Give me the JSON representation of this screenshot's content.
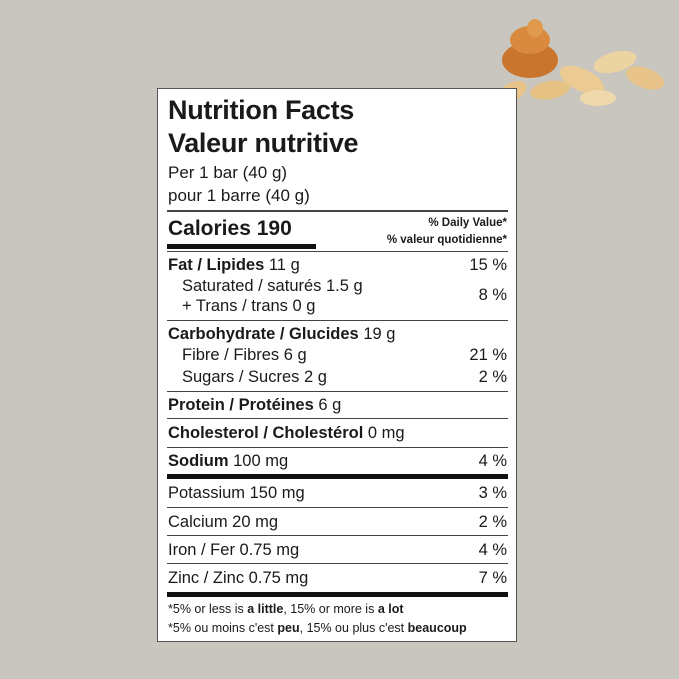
{
  "title_en": "Nutrition Facts",
  "title_fr": "Valeur nutritive",
  "serving_en": "Per 1 bar (40 g)",
  "serving_fr": "pour 1 barre (40 g)",
  "calories": {
    "label": "Calories",
    "value": "190"
  },
  "dv_header_en": "% Daily Value*",
  "dv_header_fr": "% valeur quotidienne*",
  "rows": {
    "fat": {
      "label": "Fat / Lipides",
      "amount": "11 g",
      "dv": "15 %"
    },
    "saturated": {
      "label": "Saturated / saturés 1.5 g"
    },
    "trans": {
      "label": "+ Trans / trans 0 g",
      "dv": "8 %"
    },
    "carb": {
      "label": "Carbohydrate / Glucides",
      "amount": "19 g"
    },
    "fibre": {
      "label": "Fibre / Fibres 6 g",
      "dv": "21 %"
    },
    "sugars": {
      "label": "Sugars / Sucres 2 g",
      "dv": "2 %"
    },
    "protein": {
      "label": "Protein / Protéines",
      "amount": "6 g"
    },
    "cholesterol": {
      "label": "Cholesterol / Cholestérol",
      "amount": "0 mg"
    },
    "sodium": {
      "label": "Sodium",
      "amount": "100 mg",
      "dv": "4 %"
    },
    "potassium": {
      "label": "Potassium 150 mg",
      "dv": "3 %"
    },
    "calcium": {
      "label": "Calcium 20 mg",
      "dv": "2 %"
    },
    "iron": {
      "label": "Iron / Fer 0.75 mg",
      "dv": "4 %"
    },
    "zinc": {
      "label": "Zinc / Zinc 0.75 mg",
      "dv": "7 %"
    }
  },
  "footnote_en": {
    "a": "*5% or less is ",
    "b": "a little",
    "c": ", 15% or more is ",
    "d": "a lot"
  },
  "footnote_fr": {
    "a": "*5% ou moins c'est ",
    "b": "peu",
    "c": ", 15% ou plus c'est ",
    "d": "beaucoup"
  },
  "colors": {
    "background": "#c8c6be",
    "peanut": "#e8c48a",
    "caramel": "#c9752e"
  }
}
